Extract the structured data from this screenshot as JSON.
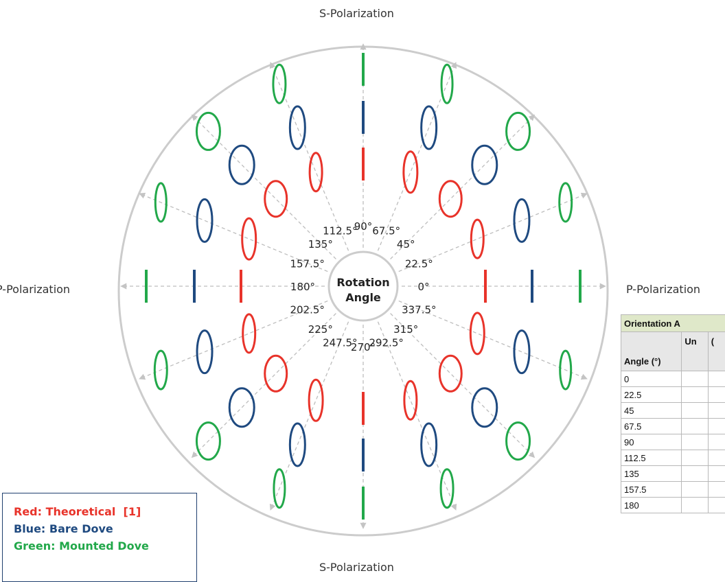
{
  "polarization_labels": {
    "top": "S-Polarization",
    "bottom": "S-Polarization",
    "left": "P-Polarization",
    "right": "P-Polarization"
  },
  "center_label": [
    "Rotation",
    "Angle"
  ],
  "angle_labels": [
    "0°",
    "22.5°",
    "45°",
    "67.5°",
    "90°",
    "112.5°",
    "135°",
    "157.5°",
    "180°",
    "202.5°",
    "225°",
    "247.5°",
    "270°",
    "292.5°",
    "315°",
    "337.5°"
  ],
  "legend": {
    "red": "Red: Theoretical  [1]",
    "blue": "Blue: Bare Dove",
    "green": "Green: Mounted Dove"
  },
  "colors": {
    "theoretical": "#e8332a",
    "bare_dove": "#1f4a80",
    "mounted_dove": "#22a84a",
    "circle": "#c8c8c8",
    "guide_lines": "#bdbdbd"
  },
  "table": {
    "title": "Orientation A",
    "headers": [
      "Angle (°)",
      "Un",
      "("
    ],
    "angles": [
      "0",
      "22.5",
      "45",
      "67.5",
      "90",
      "112.5",
      "135",
      "157.5",
      "180"
    ]
  }
}
